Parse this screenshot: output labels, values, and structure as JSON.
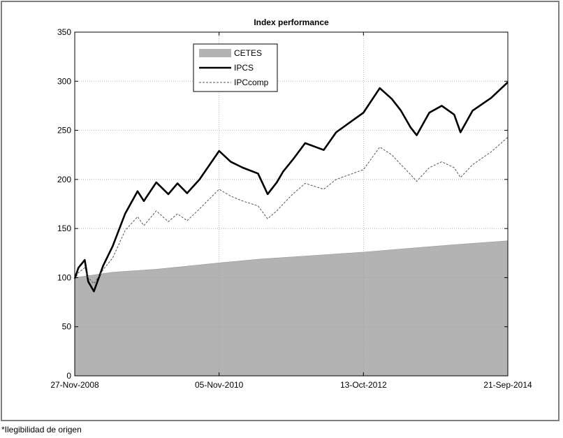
{
  "chart_data": {
    "type": "line",
    "title": "Index performance",
    "xlabel": "",
    "ylabel": "",
    "x_tick_labels": [
      "27-Nov-2008",
      "05-Nov-2010",
      "13-Oct-2012",
      "21-Sep-2014"
    ],
    "y_ticks": [
      0,
      50,
      100,
      150,
      200,
      250,
      300,
      350
    ],
    "ylim": [
      0,
      350
    ],
    "grid": true,
    "legend_position": "top-left",
    "series": [
      {
        "name": "CETES",
        "style": "area",
        "color": "#b3b3b3",
        "x": [
          "27-Nov-2008",
          "01-Jun-2009",
          "01-Jan-2010",
          "05-Nov-2010",
          "01-Jun-2011",
          "01-Jan-2012",
          "13-Oct-2012",
          "01-Jun-2013",
          "01-Jan-2014",
          "21-Sep-2014"
        ],
        "values": [
          100,
          105.5,
          108.5,
          115,
          119,
          122,
          126,
          130,
          133.5,
          137.5
        ]
      },
      {
        "name": "IPCS",
        "style": "solid",
        "color": "#000000",
        "x": [
          "27-Nov-2008",
          "15-Dec-2008",
          "15-Jan-2009",
          "01-Feb-2009",
          "01-Mar-2009",
          "15-Apr-2009",
          "01-Jun-2009",
          "01-Aug-2009",
          "01-Oct-2009",
          "01-Nov-2009",
          "01-Jan-2010",
          "01-Mar-2010",
          "15-Apr-2010",
          "01-Jun-2010",
          "01-Aug-2010",
          "05-Nov-2010",
          "01-Jan-2011",
          "01-Mar-2011",
          "15-May-2011",
          "01-Jul-2011",
          "15-Aug-2011",
          "15-Sep-2011",
          "01-Nov-2011",
          "01-Jan-2012",
          "01-Apr-2012",
          "01-Jun-2012",
          "13-Oct-2012",
          "01-Jan-2013",
          "01-Mar-2013",
          "15-Apr-2013",
          "01-Jun-2013",
          "01-Jul-2013",
          "01-Sep-2013",
          "01-Nov-2013",
          "01-Jan-2014",
          "01-Feb-2014",
          "01-Apr-2014",
          "01-Jul-2014",
          "21-Sep-2014"
        ],
        "values": [
          99,
          110,
          118,
          96,
          86,
          112,
          132,
          165,
          188,
          178,
          197,
          185,
          196,
          186,
          200,
          229,
          218,
          212,
          206,
          185,
          197,
          208,
          220,
          237,
          230,
          248,
          268,
          293,
          282,
          270,
          253,
          245,
          268,
          275,
          266,
          248,
          270,
          283,
          299
        ]
      },
      {
        "name": "IPCcomp",
        "style": "dashed",
        "color": "#555555",
        "x": [
          "27-Nov-2008",
          "15-Dec-2008",
          "15-Jan-2009",
          "01-Feb-2009",
          "01-Mar-2009",
          "15-Apr-2009",
          "01-Jun-2009",
          "01-Aug-2009",
          "01-Oct-2009",
          "01-Nov-2009",
          "01-Jan-2010",
          "01-Mar-2010",
          "15-Apr-2010",
          "01-Jun-2010",
          "01-Aug-2010",
          "05-Nov-2010",
          "01-Jan-2011",
          "01-Mar-2011",
          "15-May-2011",
          "01-Jul-2011",
          "15-Aug-2011",
          "15-Sep-2011",
          "01-Nov-2011",
          "01-Jan-2012",
          "01-Apr-2012",
          "01-Jun-2012",
          "13-Oct-2012",
          "01-Jan-2013",
          "01-Mar-2013",
          "15-Apr-2013",
          "01-Jun-2013",
          "01-Jul-2013",
          "01-Sep-2013",
          "01-Nov-2013",
          "01-Jan-2014",
          "01-Feb-2014",
          "01-Apr-2014",
          "01-Jul-2014",
          "21-Sep-2014"
        ],
        "values": [
          98,
          105,
          110,
          100,
          94,
          108,
          120,
          148,
          162,
          153,
          168,
          157,
          165,
          158,
          170,
          190,
          183,
          178,
          173,
          160,
          168,
          175,
          185,
          196,
          190,
          200,
          210,
          233,
          225,
          215,
          205,
          198,
          212,
          218,
          212,
          202,
          215,
          228,
          243
        ]
      }
    ]
  },
  "footnote": "*Ilegibilidad de origen"
}
